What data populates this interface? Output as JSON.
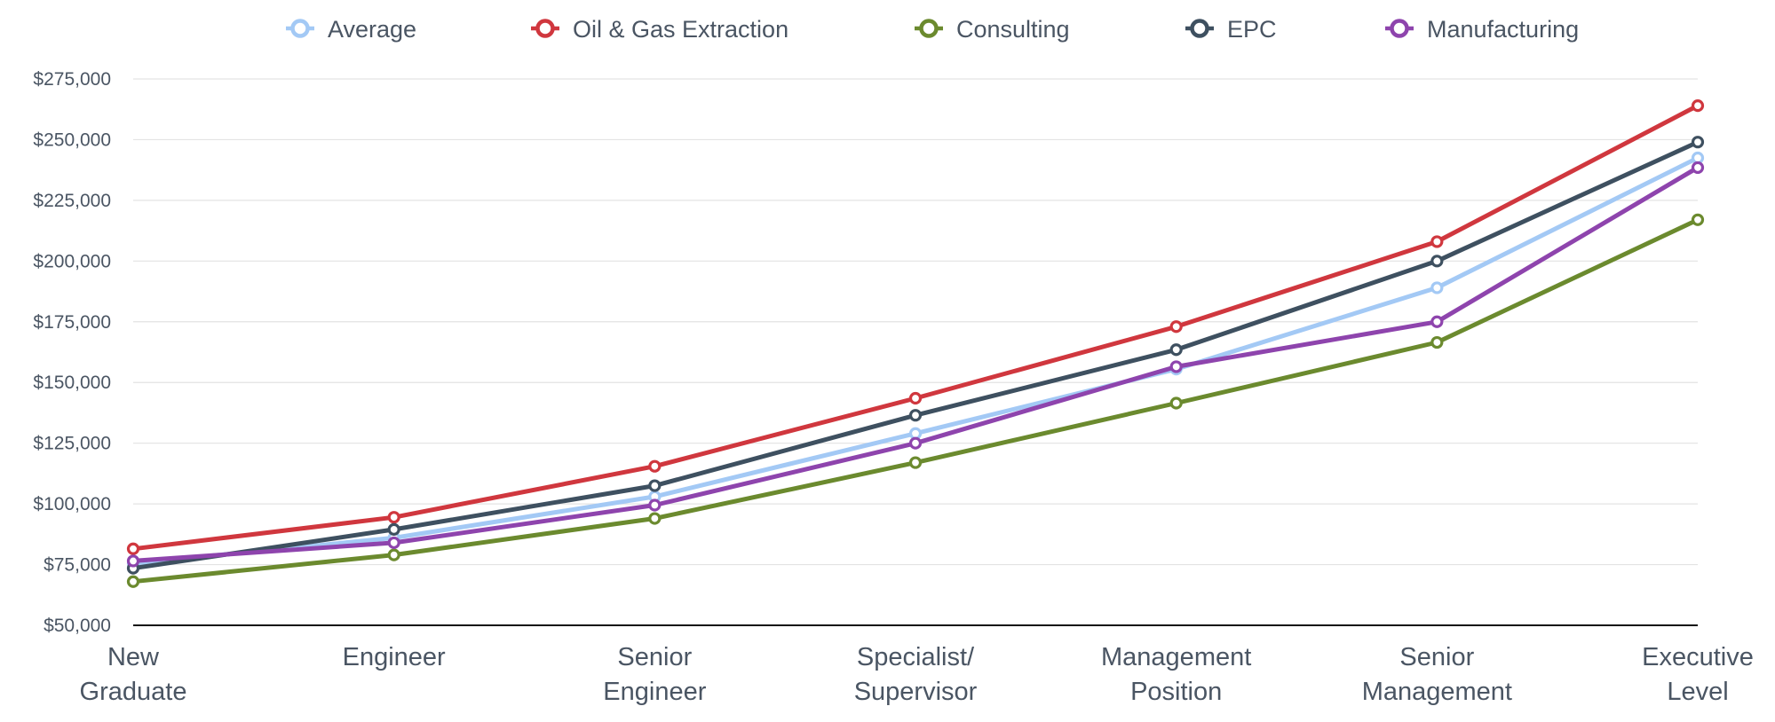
{
  "chart_data": {
    "type": "line",
    "title": "",
    "xlabel": "",
    "ylabel": "",
    "ylim": [
      50000,
      275000
    ],
    "grid": true,
    "legend_position": "top",
    "categories": [
      [
        "New",
        "Graduate"
      ],
      [
        "Engineer"
      ],
      [
        "Senior",
        "Engineer"
      ],
      [
        "Specialist/",
        "Supervisor"
      ],
      [
        "Management",
        "Position"
      ],
      [
        "Senior",
        "Management"
      ],
      [
        "Executive",
        "Level"
      ]
    ],
    "y_ticks": [
      50000,
      75000,
      100000,
      125000,
      150000,
      175000,
      200000,
      225000,
      250000,
      275000
    ],
    "y_tick_labels": [
      "$50,000",
      "$75,000",
      "$100,000",
      "$125,000",
      "$150,000",
      "$175,000",
      "$200,000",
      "$225,000",
      "$250,000",
      "$275,000"
    ],
    "series": [
      {
        "name": "Average",
        "color": "#a3c9f5",
        "values": [
          75500,
          86000,
          103000,
          129000,
          155500,
          189000,
          242500
        ]
      },
      {
        "name": "Oil & Gas Extraction",
        "color": "#d0373e",
        "values": [
          81500,
          94500,
          115500,
          143500,
          173000,
          208000,
          264000
        ]
      },
      {
        "name": "Consulting",
        "color": "#6b8a2e",
        "values": [
          68000,
          79000,
          94000,
          117000,
          141500,
          166500,
          217000
        ]
      },
      {
        "name": "EPC",
        "color": "#3e5060",
        "values": [
          73500,
          89500,
          107500,
          136500,
          163500,
          200000,
          249000
        ]
      },
      {
        "name": "Manufacturing",
        "color": "#8e44ad",
        "values": [
          76500,
          84000,
          99500,
          125000,
          156500,
          175000,
          238500
        ]
      }
    ]
  }
}
